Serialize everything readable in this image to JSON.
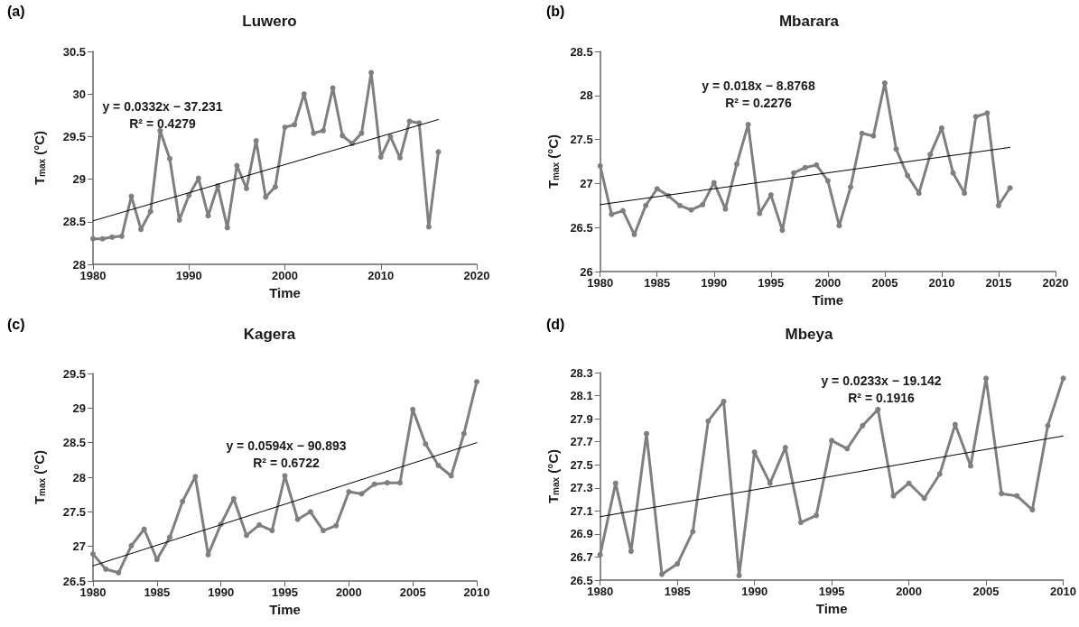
{
  "chart_data": [
    {
      "type": "line",
      "title": "Luwero",
      "xlabel": "Time",
      "ylabel": "T$_{max}$ (°C)",
      "annotations": [
        "(a)",
        "y = 0.0332x − 37.231",
        "R² = 0.4279"
      ],
      "marker": "circle",
      "xlim": [
        1980,
        2020
      ],
      "xticks": [
        1980,
        1990,
        2000,
        2010,
        2020
      ],
      "ylim": [
        28,
        30.5
      ],
      "yticks": [
        28,
        28.5,
        29,
        29.5,
        30,
        30.5
      ],
      "x": [
        1980,
        1981,
        1982,
        1983,
        1984,
        1985,
        1986,
        1987,
        1988,
        1989,
        1990,
        1991,
        1992,
        1993,
        1994,
        1995,
        1996,
        1997,
        1998,
        1999,
        2000,
        2001,
        2002,
        2003,
        2004,
        2005,
        2006,
        2007,
        2008,
        2009,
        2010,
        2011,
        2012,
        2013,
        2014,
        2015,
        2016
      ],
      "series": [
        {
          "color": "#7f7f7f",
          "values": [
            28.3,
            28.3,
            28.32,
            28.33,
            28.8,
            28.41,
            28.62,
            29.57,
            29.24,
            28.52,
            28.81,
            29.01,
            28.57,
            28.92,
            28.43,
            29.16,
            28.89,
            29.45,
            28.79,
            28.91,
            29.61,
            29.64,
            30.0,
            29.54,
            29.57,
            30.07,
            29.51,
            29.42,
            29.54,
            30.25,
            29.26,
            29.5,
            29.25,
            29.68,
            29.66,
            28.44,
            29.32
          ]
        },
        {
          "type": "line",
          "color": "#000000",
          "marker": "none",
          "x": [
            1980,
            2016
          ],
          "values": [
            28.51,
            29.7
          ]
        }
      ]
    },
    {
      "type": "line",
      "title": "Mbarara",
      "xlabel": "Time",
      "ylabel": "T$_{max}$ (°C)",
      "annotations": [
        "(b)",
        "y = 0.018x − 8.8768",
        "R² = 0.2276"
      ],
      "marker": "circle",
      "xlim": [
        1980,
        2020
      ],
      "xticks": [
        1980,
        1985,
        1990,
        1995,
        2000,
        2005,
        2010,
        2015,
        2020
      ],
      "ylim": [
        26,
        28.5
      ],
      "yticks": [
        26,
        26.5,
        27,
        27.5,
        28,
        28.5
      ],
      "x": [
        1980,
        1981,
        1982,
        1983,
        1984,
        1985,
        1986,
        1987,
        1988,
        1989,
        1990,
        1991,
        1992,
        1993,
        1994,
        1995,
        1996,
        1997,
        1998,
        1999,
        2000,
        2001,
        2002,
        2003,
        2004,
        2005,
        2006,
        2007,
        2008,
        2009,
        2010,
        2011,
        2012,
        2013,
        2014,
        2015,
        2016
      ],
      "series": [
        {
          "color": "#7f7f7f",
          "values": [
            27.2,
            26.65,
            26.69,
            26.42,
            26.75,
            26.94,
            26.86,
            26.75,
            26.7,
            26.76,
            27.01,
            26.71,
            27.22,
            27.67,
            26.66,
            26.87,
            26.47,
            27.12,
            27.18,
            27.21,
            27.03,
            26.52,
            26.96,
            27.57,
            27.54,
            28.14,
            27.39,
            27.09,
            26.89,
            27.33,
            27.63,
            27.12,
            26.89,
            27.76,
            27.8,
            26.75,
            26.95
          ]
        },
        {
          "type": "line",
          "color": "#000000",
          "marker": "none",
          "x": [
            1980,
            2016
          ],
          "values": [
            26.76,
            27.41
          ]
        }
      ]
    },
    {
      "type": "line",
      "title": "Kagera",
      "xlabel": "Time",
      "ylabel": "T$_{max}$ (°C)",
      "annotations": [
        "(c)",
        "y = 0.0594x − 90.893",
        "R² = 0.6722"
      ],
      "marker": "circle",
      "xlim": [
        1980,
        2010
      ],
      "xticks": [
        1980,
        1985,
        1990,
        1995,
        2000,
        2005,
        2010
      ],
      "ylim": [
        26.5,
        29.5
      ],
      "yticks": [
        26.5,
        27,
        27.5,
        28,
        28.5,
        29,
        29.5
      ],
      "x": [
        1980,
        1981,
        1982,
        1983,
        1984,
        1985,
        1986,
        1987,
        1988,
        1989,
        1990,
        1991,
        1992,
        1993,
        1994,
        1995,
        1996,
        1997,
        1998,
        1999,
        2000,
        2001,
        2002,
        2003,
        2004,
        2005,
        2006,
        2007,
        2008,
        2009,
        2010
      ],
      "series": [
        {
          "color": "#7f7f7f",
          "values": [
            26.89,
            26.67,
            26.62,
            27.01,
            27.25,
            26.81,
            27.13,
            27.65,
            28.01,
            26.88,
            27.32,
            27.69,
            27.16,
            27.31,
            27.23,
            28.02,
            27.39,
            27.5,
            27.23,
            27.3,
            27.79,
            27.76,
            27.9,
            27.92,
            27.92,
            28.98,
            28.48,
            28.17,
            28.02,
            28.63,
            29.38
          ]
        },
        {
          "type": "line",
          "color": "#000000",
          "marker": "none",
          "x": [
            1980,
            2010
          ],
          "values": [
            26.72,
            28.5
          ]
        }
      ]
    },
    {
      "type": "line",
      "title": "Mbeya",
      "xlabel": "Time",
      "ylabel": "T$_{max}$ (°C)",
      "annotations": [
        "(d)",
        "y = 0.0233x − 19.142",
        "R² = 0.1916"
      ],
      "marker": "circle",
      "xlim": [
        1980,
        2010
      ],
      "xticks": [
        1980,
        1985,
        1990,
        1995,
        2000,
        2005,
        2010
      ],
      "ylim": [
        26.5,
        28.3
      ],
      "yticks": [
        26.5,
        26.7,
        26.9,
        27.1,
        27.3,
        27.5,
        27.7,
        27.9,
        28.1,
        28.3
      ],
      "x": [
        1980,
        1981,
        1982,
        1983,
        1984,
        1985,
        1986,
        1987,
        1988,
        1989,
        1990,
        1991,
        1992,
        1993,
        1994,
        1995,
        1996,
        1997,
        1998,
        1999,
        2000,
        2001,
        2002,
        2003,
        2004,
        2005,
        2006,
        2007,
        2008,
        2009,
        2010
      ],
      "series": [
        {
          "color": "#7f7f7f",
          "values": [
            26.72,
            27.34,
            26.75,
            27.77,
            26.55,
            26.64,
            26.92,
            27.88,
            28.05,
            26.54,
            27.61,
            27.34,
            27.65,
            27.0,
            27.06,
            27.71,
            27.64,
            27.84,
            27.98,
            27.23,
            27.34,
            27.21,
            27.42,
            27.85,
            27.49,
            28.25,
            27.25,
            27.23,
            27.11,
            27.84,
            28.25
          ]
        },
        {
          "type": "line",
          "color": "#000000",
          "marker": "none",
          "x": [
            1980,
            2010
          ],
          "values": [
            27.05,
            27.75
          ]
        }
      ]
    }
  ]
}
